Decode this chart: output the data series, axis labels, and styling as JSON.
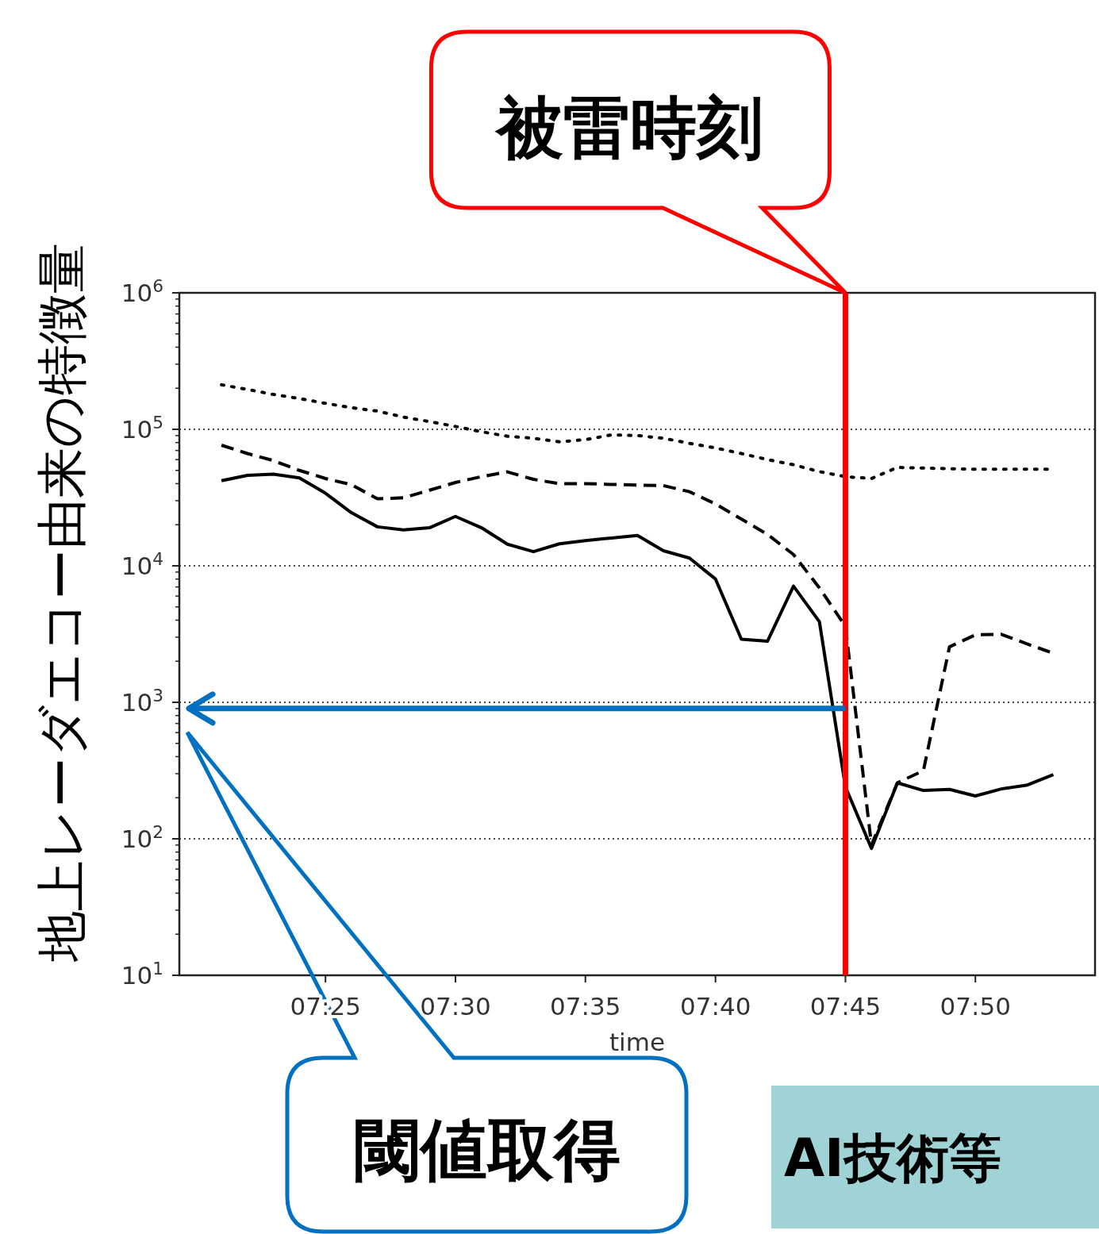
{
  "chart_data": {
    "type": "line",
    "xlabel": "time",
    "ylabel": "地上レーダエコー由来の特徴量",
    "log": "y",
    "grid": "y",
    "x": [
      7.35,
      7.3667,
      7.3833,
      7.4,
      7.4167,
      7.4333,
      7.45,
      7.4667,
      7.4833,
      7.5,
      7.5167,
      7.5333,
      7.55,
      7.5667,
      7.5833,
      7.6,
      7.6167,
      7.6333,
      7.65,
      7.6667,
      7.6833,
      7.7,
      7.7167,
      7.7333,
      7.75,
      7.7667,
      7.7833,
      7.8,
      7.8167,
      7.8333,
      7.85,
      7.8667,
      7.8833
    ],
    "xlim": [
      7.323,
      7.91
    ],
    "xticks": [
      {
        "value": 7.4167,
        "label": "07:25"
      },
      {
        "value": 7.5,
        "label": "07:30"
      },
      {
        "value": 7.5833,
        "label": "07:35"
      },
      {
        "value": 7.6667,
        "label": "07:40"
      },
      {
        "value": 7.75,
        "label": "07:45"
      },
      {
        "value": 7.8333,
        "label": "07:50"
      }
    ],
    "ylim": [
      10,
      1000000
    ],
    "yticks": [
      {
        "value": 10,
        "label": "10$^{1}$"
      },
      {
        "value": 100,
        "label": "10$^{2}$"
      },
      {
        "value": 1000,
        "label": "10$^{3}$"
      },
      {
        "value": 10000,
        "label": "10$^{4}$"
      },
      {
        "value": 100000,
        "label": "10$^{5}$"
      },
      {
        "value": 1000000,
        "label": "10$^{6}$"
      }
    ],
    "series": [
      {
        "color": "#000000",
        "line_style": "solid",
        "values": [
          42000,
          46000,
          47000,
          44000,
          34000,
          24500,
          19300,
          18300,
          19000,
          23000,
          19000,
          14400,
          12700,
          14500,
          15300,
          16000,
          16700,
          12900,
          11400,
          8000,
          2900,
          2800,
          7100,
          3900,
          240,
          85,
          257,
          226,
          230,
          206,
          232,
          248,
          295
        ]
      },
      {
        "color": "#000000",
        "line_style": "dashed",
        "values": [
          76500,
          66500,
          59000,
          50000,
          43600,
          39300,
          31000,
          31500,
          35800,
          40800,
          45000,
          48800,
          43000,
          40000,
          40000,
          39500,
          39000,
          38700,
          34900,
          28400,
          22000,
          17000,
          12100,
          6900,
          3600,
          90,
          257,
          316,
          2550,
          3120,
          3150,
          2670,
          2290
        ]
      },
      {
        "color": "#000000",
        "line_style": "dotted",
        "values": [
          212000,
          196000,
          180000,
          168000,
          155000,
          144000,
          136000,
          123000,
          114000,
          105000,
          96000,
          89000,
          86000,
          81000,
          84000,
          91000,
          90000,
          86000,
          79000,
          73000,
          66500,
          60000,
          55000,
          49000,
          45000,
          43600,
          52600,
          52000,
          51500,
          51000,
          51000,
          51000,
          51000
        ]
      }
    ],
    "ref_lines": [
      {
        "axis": "x",
        "value": 7.75,
        "label": "被雷時刻",
        "color": "#ff0000"
      },
      {
        "axis": "y",
        "value": 900,
        "color": "#0070c0"
      }
    ],
    "annotations": [
      "閾値取得",
      "AI技術等"
    ]
  }
}
